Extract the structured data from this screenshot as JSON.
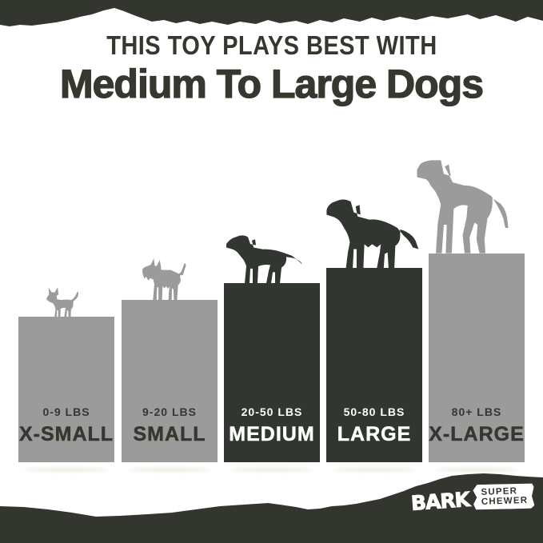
{
  "header": {
    "eyebrow": "THIS TOY PLAYS BEST WITH",
    "title": "Medium To Large Dogs"
  },
  "chart_data": {
    "type": "bar",
    "title": "This toy plays best with medium to large dogs",
    "categories": [
      "X-SMALL",
      "SMALL",
      "MEDIUM",
      "LARGE",
      "X-LARGE"
    ],
    "weight_labels": [
      "0-9 LBS",
      "9-20 LBS",
      "20-50 LBS",
      "50-80 LBS",
      "80+ LBS"
    ],
    "values": [
      182,
      203,
      224,
      243,
      261
    ],
    "highlighted": [
      false,
      false,
      true,
      true,
      false
    ],
    "dog_icons": [
      "chihuahua-icon",
      "terrier-icon",
      "labrador-icon",
      "golden-retriever-icon",
      "great-dane-icon"
    ],
    "ylabel": "",
    "xlabel": "",
    "legend": "none",
    "grid": false
  },
  "colors": {
    "background": "#ffffff",
    "bar_gray": "#9a9b9a",
    "bar_dark": "#313630",
    "band_dark": "#32362f",
    "text_dark": "#34382f",
    "text_light": "#ffffff"
  },
  "logo": {
    "brand": "BARK",
    "product_line1": "SUPER",
    "product_line2": "CHEWER"
  }
}
